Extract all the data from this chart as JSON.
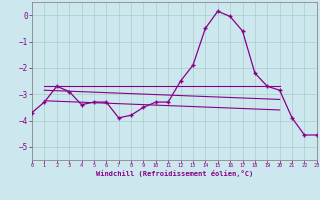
{
  "xlabel": "Windchill (Refroidissement éolien,°C)",
  "bg_color": "#cce8ee",
  "grid_color": "#aacccc",
  "line_color": "#880088",
  "xlim": [
    0,
    23
  ],
  "ylim": [
    -5.5,
    0.5
  ],
  "xticks": [
    0,
    1,
    2,
    3,
    4,
    5,
    6,
    7,
    8,
    9,
    10,
    11,
    12,
    13,
    14,
    15,
    16,
    17,
    18,
    19,
    20,
    21,
    22,
    23
  ],
  "yticks": [
    0,
    -1,
    -2,
    -3,
    -4,
    -5
  ],
  "x_data": [
    0,
    1,
    2,
    3,
    4,
    5,
    6,
    7,
    8,
    9,
    10,
    11,
    12,
    13,
    14,
    15,
    16,
    17,
    18,
    19,
    20,
    21,
    22,
    23
  ],
  "y_data": [
    -3.7,
    -3.3,
    -2.7,
    -2.9,
    -3.4,
    -3.3,
    -3.3,
    -3.9,
    -3.8,
    -3.5,
    -3.3,
    -3.3,
    -2.5,
    -1.9,
    -0.5,
    0.15,
    -0.05,
    -0.6,
    -2.2,
    -2.7,
    -2.85,
    -3.9,
    -4.55,
    -4.55
  ],
  "trend1_x": [
    1,
    20
  ],
  "trend1_y": [
    -2.7,
    -2.7
  ],
  "trend2_x": [
    1,
    20
  ],
  "trend2_y": [
    -2.85,
    -3.2
  ],
  "trend3_x": [
    1,
    20
  ],
  "trend3_y": [
    -3.25,
    -3.6
  ]
}
